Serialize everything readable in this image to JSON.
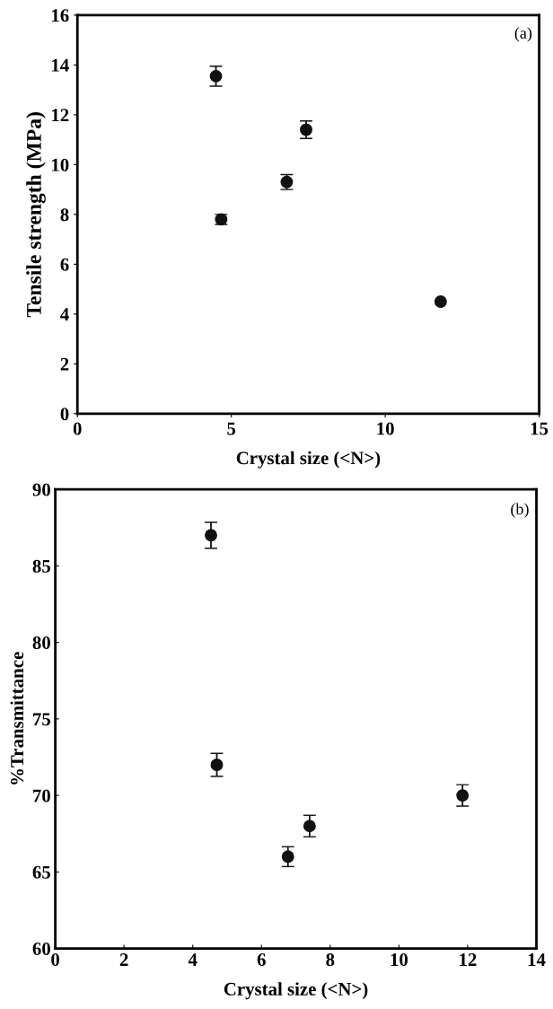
{
  "chart_data": [
    {
      "type": "scatter",
      "xlabel": "Crystal size (<N>)",
      "ylabel": "Tensile strength (MPa)",
      "annotations": [
        "(a)"
      ],
      "x": [
        4.5,
        4.67,
        6.8,
        7.43,
        11.8
      ],
      "series": [
        {
          "color": "#111111",
          "values": [
            13.55,
            7.8,
            9.3,
            11.4,
            4.5
          ],
          "errors": [
            0.4,
            0.2,
            0.3,
            0.35,
            null
          ]
        }
      ],
      "xlim": [
        0,
        15
      ],
      "xticks": [
        0,
        5,
        10,
        15
      ],
      "ylim": [
        0,
        16
      ],
      "yticks": [
        0,
        2,
        4,
        6,
        8,
        10,
        12,
        14,
        16
      ],
      "grid": false,
      "marker": "circle",
      "legend": false
    },
    {
      "type": "scatter",
      "xlabel": "Crystal size (<N>)",
      "ylabel": "%Transmittance",
      "annotations": [
        "(b)"
      ],
      "x": [
        4.53,
        4.7,
        6.77,
        7.4,
        11.85
      ],
      "series": [
        {
          "color": "#111111",
          "values": [
            87,
            72,
            66,
            68,
            70
          ],
          "errors": [
            0.85,
            0.75,
            0.65,
            0.7,
            0.7
          ]
        }
      ],
      "xlim": [
        0,
        14
      ],
      "xticks": [
        0,
        2,
        4,
        6,
        8,
        10,
        12,
        14
      ],
      "ylim": [
        60,
        90
      ],
      "yticks": [
        60,
        65,
        70,
        75,
        80,
        85,
        90
      ],
      "grid": false,
      "marker": "circle",
      "legend": false
    }
  ]
}
